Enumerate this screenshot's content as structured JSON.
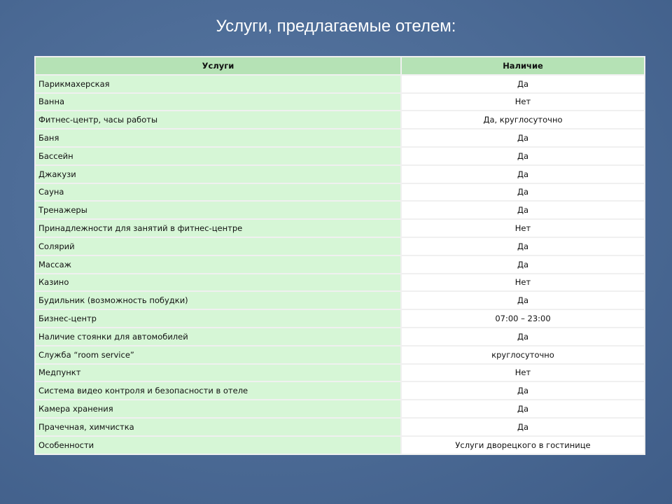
{
  "header": {
    "title": "Услуги, предлагаемые отелем:"
  },
  "table": {
    "columns": [
      "Услуги",
      "Наличие"
    ],
    "rows": [
      [
        "Парикмахерская",
        "Да"
      ],
      [
        "Ванна",
        "Нет"
      ],
      [
        "Фитнес-центр, часы работы",
        "Да, круглосуточно"
      ],
      [
        "Баня",
        "Да"
      ],
      [
        "Бассейн",
        "Да"
      ],
      [
        "Джакузи",
        "Да"
      ],
      [
        "Сауна",
        "Да"
      ],
      [
        "Тренажеры",
        "Да"
      ],
      [
        "Принадлежности для занятий в фитнес-центре",
        "Нет"
      ],
      [
        "Солярий",
        "Да"
      ],
      [
        "Массаж",
        "Да"
      ],
      [
        "Казино",
        "Нет"
      ],
      [
        "Будильник (возможность побудки)",
        "Да"
      ],
      [
        "Бизнес-центр",
        "07:00 – 23:00"
      ],
      [
        "Наличие стоянки для автомобилей",
        "Да"
      ],
      [
        "Служба “room service”",
        "круглосуточно"
      ],
      [
        "Медпункт",
        "Нет"
      ],
      [
        "Система видео контроля и безопасности в отеле",
        "Да"
      ],
      [
        "Камера хранения",
        "Да"
      ],
      [
        "Прачечная, химчистка",
        "Да"
      ],
      [
        "Особенности",
        "Услуги дворецкого в гостинице"
      ]
    ]
  }
}
